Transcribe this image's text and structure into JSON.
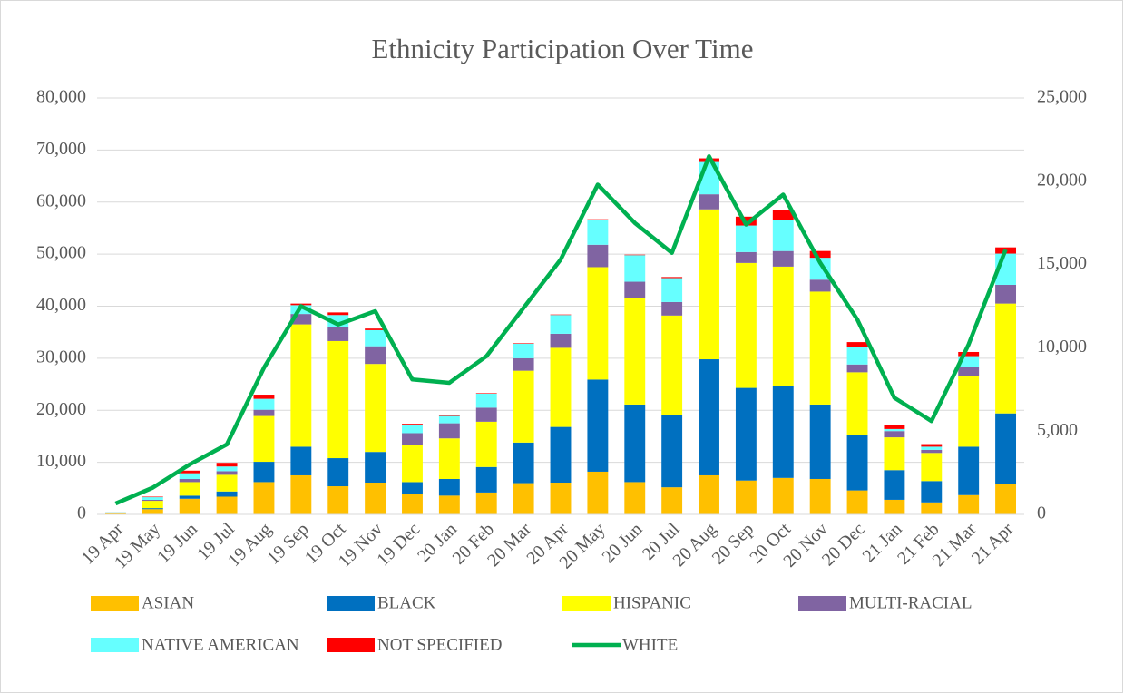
{
  "chart_data": {
    "type": "bar",
    "stacked": true,
    "title": "Ethnicity Participation Over Time",
    "categories": [
      "19 Apr",
      "19 May",
      "19 Jun",
      "19 Jul",
      "19 Aug",
      "19 Sep",
      "19 Oct",
      "19 Nov",
      "19 Dec",
      "20 Jan",
      "20 Feb",
      "20 Mar",
      "20 Apr",
      "20 May",
      "20 Jun",
      "20 Jul",
      "20 Aug",
      "20 Sep",
      "20 Oct",
      "20 Nov",
      "20 Dec",
      "21 Jan",
      "21 Feb",
      "21 Mar",
      "21 Apr"
    ],
    "series": [
      {
        "name": "ASIAN",
        "type": "bar",
        "color": "#FFC000",
        "values": [
          200,
          1000,
          3000,
          3400,
          6200,
          7500,
          5400,
          6100,
          4000,
          3600,
          4200,
          6000,
          6100,
          8200,
          6200,
          5200,
          7500,
          6500,
          7000,
          6800,
          4600,
          2800,
          2300,
          3700,
          5900
        ]
      },
      {
        "name": "BLACK",
        "type": "bar",
        "color": "#0070C0",
        "values": [
          30,
          200,
          600,
          1000,
          3900,
          5500,
          5400,
          5900,
          2200,
          3200,
          4900,
          7800,
          10700,
          17700,
          14900,
          13900,
          22300,
          17800,
          17600,
          14300,
          10600,
          5700,
          4100,
          9300,
          13500
        ]
      },
      {
        "name": "HISPANIC",
        "type": "bar",
        "color": "#FFFF00",
        "values": [
          100,
          1400,
          2600,
          3200,
          8800,
          23500,
          22500,
          16900,
          7100,
          7800,
          8700,
          13800,
          15200,
          21600,
          20400,
          19100,
          28800,
          24000,
          23000,
          21700,
          12100,
          6300,
          5400,
          13600,
          21100
        ]
      },
      {
        "name": "MULTI-RACIAL",
        "type": "bar",
        "color": "#8064A2",
        "values": [
          20,
          200,
          600,
          700,
          1200,
          2000,
          2700,
          3400,
          2300,
          2900,
          2700,
          2400,
          2700,
          4300,
          3200,
          2600,
          2900,
          2100,
          3000,
          2300,
          1500,
          1200,
          600,
          1800,
          3600
        ]
      },
      {
        "name": "NATIVE AMERICAN",
        "type": "bar",
        "color": "#66FFFF",
        "values": [
          50,
          500,
          1100,
          900,
          2100,
          1700,
          2300,
          3100,
          1500,
          1400,
          2700,
          2800,
          3600,
          4700,
          5100,
          4600,
          6200,
          5100,
          6000,
          4200,
          3400,
          400,
          600,
          2000,
          6000
        ]
      },
      {
        "name": "NOT SPECIFIED",
        "type": "bar",
        "color": "#FF0000",
        "values": [
          10,
          100,
          500,
          700,
          800,
          300,
          500,
          300,
          300,
          200,
          100,
          100,
          100,
          200,
          100,
          200,
          700,
          1700,
          1800,
          1300,
          900,
          700,
          500,
          800,
          1200
        ]
      },
      {
        "name": "WHITE",
        "type": "line",
        "axis": "y2",
        "color": "#00B050",
        "values": [
          650,
          1600,
          3000,
          4200,
          8800,
          12500,
          11400,
          12200,
          8100,
          7900,
          9500,
          12400,
          15300,
          19800,
          17500,
          15700,
          21500,
          17400,
          19200,
          15100,
          11700,
          7000,
          5600,
          10200,
          15900
        ]
      }
    ],
    "ylim": [
      0,
      80000
    ],
    "yticks": [
      0,
      {
        "value": 10000,
        "label": "10,000"
      },
      {
        "value": 20000,
        "label": "20,000"
      },
      {
        "value": 30000,
        "label": "30,000"
      },
      {
        "value": 40000,
        "label": "40,000"
      },
      {
        "value": 50000,
        "label": "50,000"
      },
      {
        "value": 60000,
        "label": "60,000"
      },
      {
        "value": 70000,
        "label": "70,000"
      },
      {
        "value": 80000,
        "label": "80,000"
      }
    ],
    "y2lim": [
      0,
      25000
    ],
    "y2ticks": [
      0,
      {
        "value": 5000,
        "label": "5,000"
      },
      {
        "value": 10000,
        "label": "10,000"
      },
      {
        "value": 15000,
        "label": "15,000"
      },
      {
        "value": 20000,
        "label": "20,000"
      },
      {
        "value": 25000,
        "label": "25,000"
      }
    ],
    "grid": true,
    "legend": "bottom"
  }
}
